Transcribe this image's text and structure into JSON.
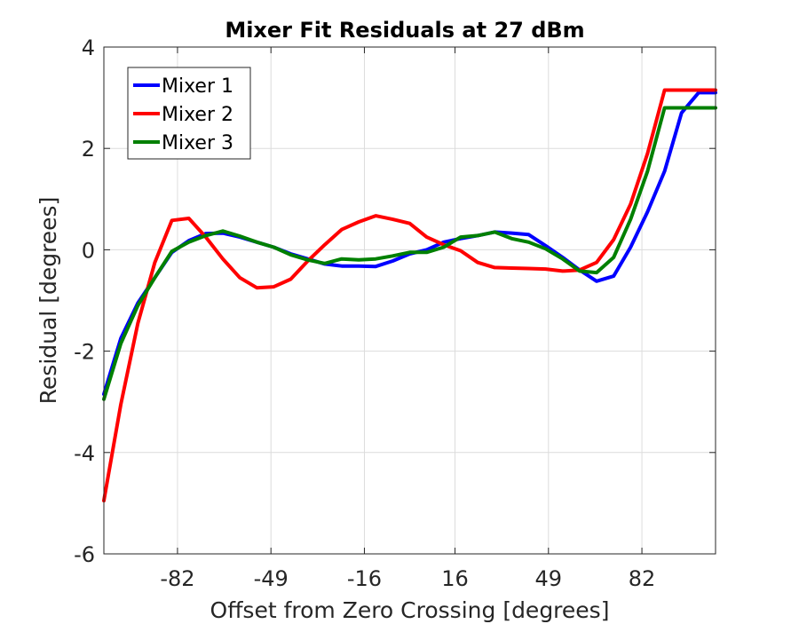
{
  "chart_data": {
    "type": "line",
    "title": "Mixer Fit Residuals at 27 dBm",
    "xlabel": "Offset from Zero Crossing [degrees]",
    "ylabel": "Residual [degrees]",
    "xlim": [
      -108,
      108
    ],
    "ylim": [
      -6,
      4
    ],
    "xticks": [
      -82,
      -49,
      -16,
      16,
      49,
      82
    ],
    "yticks": [
      -6,
      -4,
      -2,
      0,
      2,
      4
    ],
    "grid": true,
    "legend_position": "top-left",
    "series": [
      {
        "name": "Mixer 1",
        "color": "#0000ff",
        "x": [
          -108,
          -102,
          -96,
          -90,
          -84,
          -78,
          -72,
          -66,
          -60,
          -54,
          -48,
          -42,
          -36,
          -30,
          -24,
          -18,
          -12,
          -6,
          0,
          6,
          12,
          18,
          24,
          30,
          36,
          42,
          48,
          54,
          60,
          66,
          72,
          78,
          84,
          90,
          96,
          102,
          108
        ],
        "y": [
          -2.85,
          -1.75,
          -1.05,
          -0.55,
          -0.05,
          0.18,
          0.32,
          0.33,
          0.25,
          0.15,
          0.05,
          -0.08,
          -0.18,
          -0.28,
          -0.32,
          -0.32,
          -0.33,
          -0.22,
          -0.08,
          0.0,
          0.15,
          0.22,
          0.28,
          0.35,
          0.33,
          0.3,
          0.08,
          -0.15,
          -0.4,
          -0.62,
          -0.52,
          0.05,
          0.75,
          1.55,
          2.7,
          3.1,
          3.1
        ]
      },
      {
        "name": "Mixer 2",
        "color": "#ff0000",
        "x": [
          -108,
          -102,
          -96,
          -90,
          -84,
          -78,
          -72,
          -66,
          -60,
          -54,
          -48,
          -42,
          -36,
          -30,
          -24,
          -18,
          -12,
          -6,
          0,
          6,
          12,
          18,
          24,
          30,
          36,
          42,
          48,
          54,
          60,
          66,
          72,
          78,
          84,
          90,
          96,
          102,
          108
        ],
        "y": [
          -4.95,
          -3.05,
          -1.45,
          -0.25,
          0.58,
          0.62,
          0.25,
          -0.18,
          -0.55,
          -0.75,
          -0.73,
          -0.58,
          -0.22,
          0.1,
          0.4,
          0.55,
          0.67,
          0.6,
          0.52,
          0.25,
          0.1,
          -0.02,
          -0.25,
          -0.35,
          -0.36,
          -0.37,
          -0.38,
          -0.42,
          -0.4,
          -0.25,
          0.2,
          0.9,
          1.9,
          3.15,
          3.15,
          3.15,
          3.15
        ]
      },
      {
        "name": "Mixer 3",
        "color": "#008000",
        "x": [
          -108,
          -102,
          -96,
          -90,
          -84,
          -78,
          -72,
          -66,
          -60,
          -54,
          -48,
          -42,
          -36,
          -30,
          -24,
          -18,
          -12,
          -6,
          0,
          6,
          12,
          18,
          24,
          30,
          36,
          42,
          48,
          54,
          60,
          66,
          72,
          78,
          84,
          90,
          96,
          102,
          108
        ],
        "y": [
          -2.95,
          -1.85,
          -1.1,
          -0.55,
          -0.03,
          0.15,
          0.28,
          0.37,
          0.27,
          0.15,
          0.05,
          -0.1,
          -0.2,
          -0.27,
          -0.18,
          -0.2,
          -0.18,
          -0.12,
          -0.05,
          -0.05,
          0.05,
          0.25,
          0.28,
          0.35,
          0.22,
          0.15,
          0.02,
          -0.18,
          -0.42,
          -0.45,
          -0.15,
          0.6,
          1.55,
          2.8,
          2.8,
          2.8,
          2.8
        ]
      }
    ]
  }
}
